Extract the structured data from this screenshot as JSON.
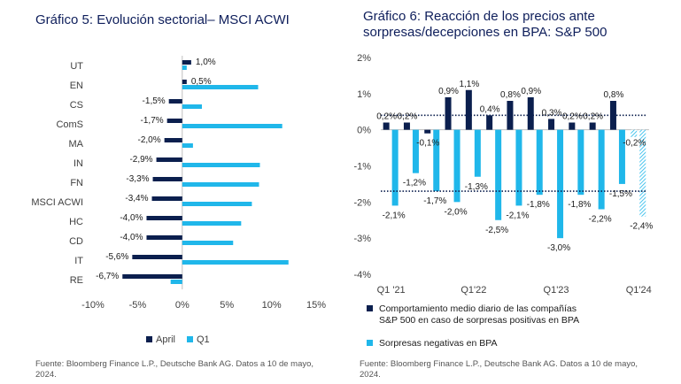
{
  "colors": {
    "navy": "#0b1f4e",
    "cyan": "#20b7ea",
    "title": "#0e1e5b",
    "grid": "#d9d9d9",
    "text": "#404040",
    "dotted": "#0b1f4e"
  },
  "chart_data": [
    {
      "type": "bar",
      "orientation": "horizontal",
      "title": "Gráfico 5: Evolución sectorial– MSCI ACWI",
      "categories": [
        "UT",
        "EN",
        "CS",
        "ComS",
        "MA",
        "IN",
        "FN",
        "MSCI ACWI",
        "HC",
        "CD",
        "IT",
        "RE"
      ],
      "series": [
        {
          "name": "April",
          "values": [
            1.0,
            0.5,
            -1.5,
            -1.7,
            -2.0,
            -2.9,
            -3.3,
            -3.4,
            -4.0,
            -4.0,
            -5.6,
            -6.7
          ]
        },
        {
          "name": "Q1",
          "values": [
            0.5,
            8.5,
            2.2,
            11.2,
            1.2,
            8.7,
            8.6,
            7.8,
            6.6,
            5.7,
            11.9,
            -1.3
          ]
        }
      ],
      "data_labels": [
        "1,0%",
        "0,5%",
        "-1,5%",
        "-1,7%",
        "-2,0%",
        "-2,9%",
        "-3,3%",
        "-3,4%",
        "-4,0%",
        "-4,0%",
        "-5,6%",
        "-6,7%"
      ],
      "xlim": [
        -10,
        15
      ],
      "xticks": [
        -10,
        -5,
        0,
        5,
        10,
        15
      ],
      "xtick_labels": [
        "-10%",
        "-5%",
        "0%",
        "5%",
        "10%",
        "15%"
      ],
      "legend": [
        {
          "name": "April",
          "series": 0
        },
        {
          "name": "Q1",
          "series": 1
        }
      ],
      "legend_position": "bottom",
      "source": "Fuente: Bloomberg Finance L.P., Deutsche Bank AG. Datos a 10 de mayo, 2024."
    },
    {
      "type": "bar",
      "title_lines": [
        "Gráfico 6: Reacción de los precios ante",
        "sorpresas/decepciones en BPA: S&P 500"
      ],
      "periods": 13,
      "series": [
        {
          "name": "Comportamiento medio diario de las compañías S&P 500 en caso de sorpresas positivas en BPA",
          "values": [
            0.2,
            0.2,
            -0.1,
            0.9,
            1.1,
            0.4,
            0.8,
            0.9,
            0.3,
            0.2,
            0.2,
            0.8,
            -0.2
          ],
          "labels": [
            "0,2%",
            "0,2%",
            "-0,1%",
            "0,9%",
            "1,1%",
            "0,4%",
            "0,8%",
            "0,9%",
            "0,3%",
            "0,2%",
            "0,2%",
            "0,8%",
            "-0,2%"
          ]
        },
        {
          "name": "Sorpresas negativas en BPA",
          "values": [
            -2.1,
            -1.2,
            -1.7,
            -2.0,
            -1.3,
            -2.5,
            -2.1,
            -1.8,
            -3.0,
            -1.8,
            -2.2,
            -1.5,
            -2.4
          ],
          "labels": [
            "-2,1%",
            "-1,2%",
            "-1,7%",
            "-2,0%",
            "-1,3%",
            "-2,5%",
            "-2,1%",
            "-1,8%",
            "-3,0%",
            "-1,8%",
            "-2,2%",
            "-1,5%",
            "-2,4%"
          ]
        }
      ],
      "last_period_hatched": true,
      "average_lines": [
        0.4,
        -1.7
      ],
      "ylim": [
        -4,
        2
      ],
      "yticks": [
        2,
        1,
        0,
        -1,
        -2,
        -3,
        -4
      ],
      "ytick_labels": [
        "2%",
        "1%",
        "0%",
        "-1%",
        "-2%",
        "-3%",
        "-4%"
      ],
      "xtick_labels": [
        {
          "label": "Q1 '21",
          "period": 0
        },
        {
          "label": "Q1'22",
          "period": 4
        },
        {
          "label": "Q1'23",
          "period": 8
        },
        {
          "label": "Q1'24",
          "period": 12
        }
      ],
      "legend_position": "bottom",
      "source": "Fuente: Bloomberg Finance L.P., Deutsche Bank AG. Datos a 10 de mayo, 2024."
    }
  ]
}
